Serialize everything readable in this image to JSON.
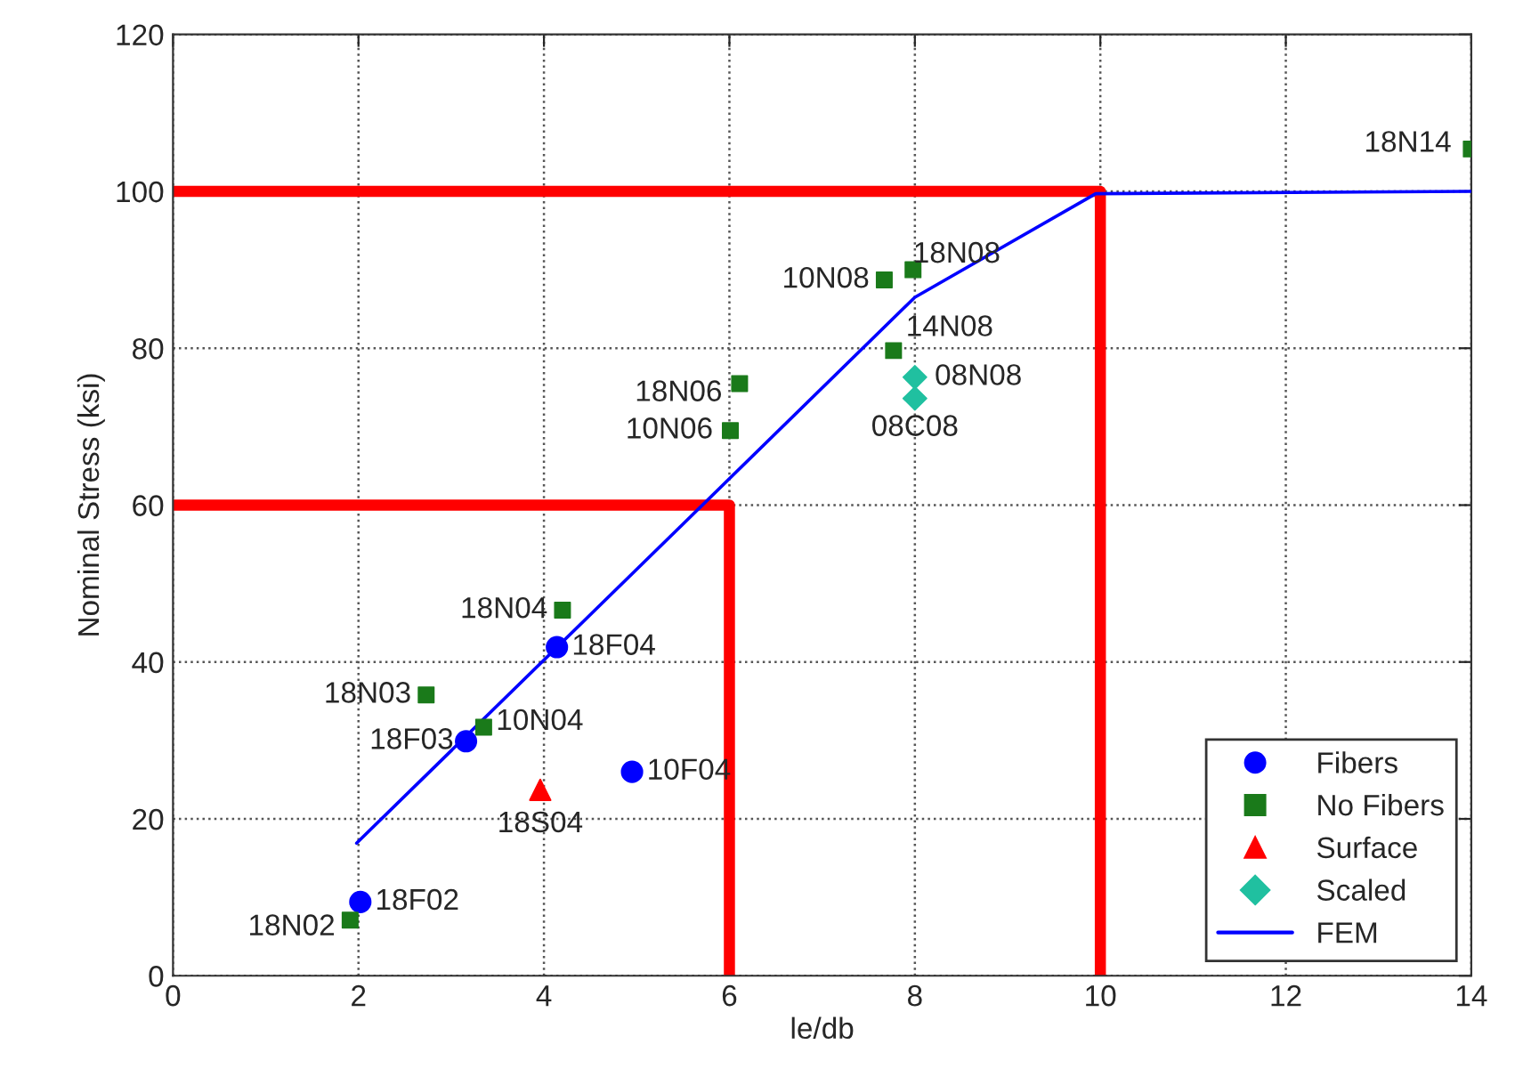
{
  "chart_data": {
    "type": "scatter",
    "xlabel": "le/db",
    "ylabel": "Nominal Stress (ksi)",
    "xlim": [
      0,
      14
    ],
    "ylim": [
      0,
      120
    ],
    "xticks": [
      0,
      2,
      4,
      6,
      8,
      10,
      12,
      14
    ],
    "yticks": [
      0,
      20,
      40,
      60,
      80,
      100,
      120
    ],
    "grid": true,
    "legend": "bottom right",
    "series": [
      {
        "name": "Fibers",
        "color": "#0000ff",
        "marker": "circle",
        "x": [
          2.02,
          3.16,
          4.14,
          4.95
        ],
        "values": [
          9.4,
          29.9,
          41.9,
          26
        ]
      },
      {
        "name": "No Fibers",
        "color": "#1a7a1a",
        "marker": "square",
        "x": [
          1.91,
          2.73,
          3.35,
          4.2,
          6.01,
          6.11,
          7.67,
          7.98,
          7.77,
          14.0
        ],
        "values": [
          7.1,
          35.8,
          31.7,
          46.6,
          69.5,
          75.5,
          88.7,
          90.0,
          79.7,
          105.4
        ]
      },
      {
        "name": "Surface",
        "color": "#ff0000",
        "marker": "triangle",
        "x": [
          3.96
        ],
        "values": [
          23.7
        ]
      },
      {
        "name": "Scaled",
        "color": "#20c0a0",
        "marker": "diamond",
        "x": [
          8.0,
          8.0
        ],
        "values": [
          76.3,
          73.6
        ]
      },
      {
        "name": "FEM",
        "type": "line",
        "color": "#0000ff",
        "marker": "none",
        "x": [
          1.98,
          8.0,
          9.95,
          14.0
        ],
        "values": [
          16.9,
          86.5,
          99.7,
          100
        ]
      },
      {
        "type": "line",
        "color": "#ff0000",
        "marker": "none",
        "x": [
          0,
          10,
          10
        ],
        "values": [
          100,
          100,
          0
        ]
      },
      {
        "type": "line",
        "color": "#ff0000",
        "marker": "none",
        "x": [
          0,
          6,
          6
        ],
        "values": [
          60,
          60,
          0
        ]
      }
    ],
    "annotations": [
      {
        "text": "18F02",
        "x": 2.02,
        "y": 9.4
      },
      {
        "text": "18F03",
        "x": 3.16,
        "y": 29.9
      },
      {
        "text": "18F04",
        "x": 4.14,
        "y": 41.9
      },
      {
        "text": "10F04",
        "x": 4.95,
        "y": 26
      },
      {
        "text": "18N02",
        "x": 1.91,
        "y": 7.1
      },
      {
        "text": "18N03",
        "x": 2.73,
        "y": 35.8
      },
      {
        "text": "10N04",
        "x": 3.35,
        "y": 31.7
      },
      {
        "text": "18N04",
        "x": 4.2,
        "y": 46.6
      },
      {
        "text": "10N06",
        "x": 6.01,
        "y": 69.5
      },
      {
        "text": "18N06",
        "x": 6.11,
        "y": 75.5
      },
      {
        "text": "10N08",
        "x": 7.67,
        "y": 88.7
      },
      {
        "text": "18N08",
        "x": 7.98,
        "y": 90.0
      },
      {
        "text": "14N08",
        "x": 7.77,
        "y": 79.7
      },
      {
        "text": "18N14",
        "x": 14.0,
        "y": 105.4
      },
      {
        "text": "18S04",
        "x": 3.96,
        "y": 23.7
      },
      {
        "text": "08N08",
        "x": 8.0,
        "y": 76.3
      },
      {
        "text": "08C08",
        "x": 8.0,
        "y": 73.6
      }
    ]
  }
}
